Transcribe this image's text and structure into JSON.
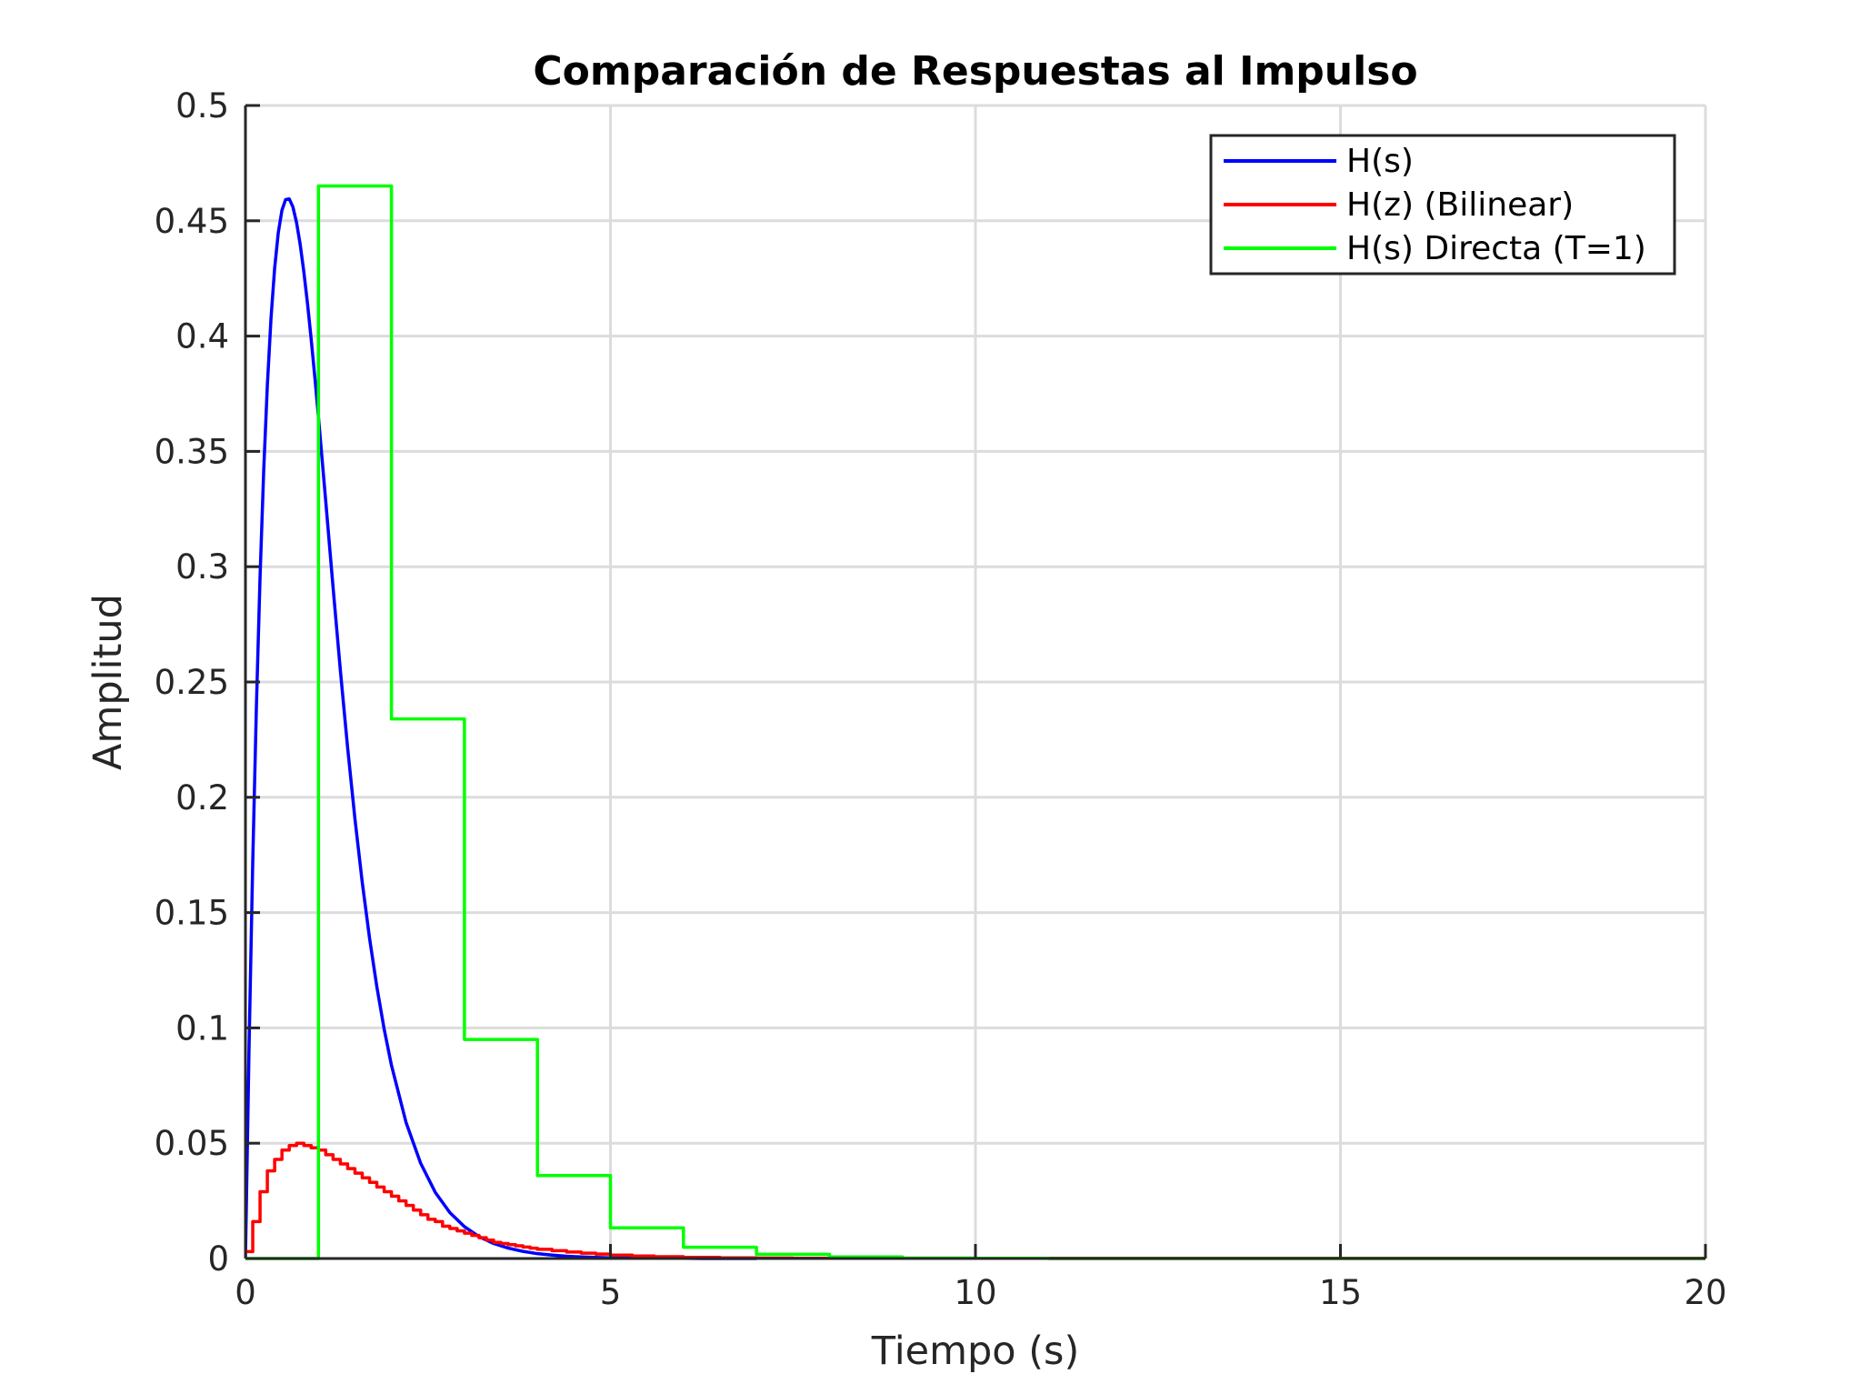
{
  "chart_data": {
    "type": "line",
    "title": "Comparación de Respuestas al Impulso",
    "xlabel": "Tiempo (s)",
    "ylabel": "Amplitud",
    "xlim": [
      0,
      20
    ],
    "ylim": [
      0,
      0.5
    ],
    "xticks": [
      0,
      5,
      10,
      15,
      20
    ],
    "xtick_labels": [
      "0",
      "5",
      "10",
      "15",
      "20"
    ],
    "yticks": [
      0,
      0.05,
      0.1,
      0.15,
      0.2,
      0.25,
      0.3,
      0.35,
      0.4,
      0.45,
      0.5
    ],
    "ytick_labels": [
      "0",
      "0.05",
      "0.1",
      "0.15",
      "0.2",
      "0.25",
      "0.3",
      "0.35",
      "0.4",
      "0.45",
      "0.5"
    ],
    "grid": true,
    "legend_position": "top-right",
    "series": [
      {
        "name": "H(s)",
        "style": "line",
        "color": "#0000ff",
        "x": [
          0,
          0.05,
          0.1,
          0.15,
          0.2,
          0.25,
          0.3,
          0.35,
          0.4,
          0.45,
          0.5,
          0.55,
          0.6,
          0.65,
          0.7,
          0.75,
          0.8,
          0.85,
          0.9,
          0.95,
          1.0,
          1.1,
          1.2,
          1.3,
          1.4,
          1.5,
          1.6,
          1.7,
          1.8,
          1.9,
          2.0,
          2.2,
          2.4,
          2.6,
          2.8,
          3.0,
          3.2,
          3.4,
          3.6,
          3.8,
          4.0,
          4.2,
          4.4,
          4.6,
          4.8,
          5.0,
          5.25,
          5.5,
          5.75,
          6.0,
          6.25,
          6.5,
          6.75,
          7.0
        ],
        "values": [
          0,
          0.0928,
          0.1722,
          0.2394,
          0.2955,
          0.3417,
          0.3787,
          0.4077,
          0.4295,
          0.4449,
          0.4546,
          0.4592,
          0.4595,
          0.456,
          0.4492,
          0.4397,
          0.4278,
          0.4141,
          0.3988,
          0.3823,
          0.3649,
          0.3283,
          0.2911,
          0.2551,
          0.2214,
          0.1906,
          0.1631,
          0.1389,
          0.1178,
          0.0995,
          0.0838,
          0.059,
          0.0413,
          0.0287,
          0.0199,
          0.0138,
          0.0095,
          0.0065,
          0.0045,
          0.0031,
          0.0021,
          0.0015,
          0.001,
          0.0007,
          0.0005,
          0.0003,
          0.0002,
          0.0001,
          0.0001,
          0.0001,
          0.0,
          0.0,
          0.0,
          0.0
        ]
      },
      {
        "name": "H(z) (Bilinear)",
        "style": "stairs",
        "color": "#ff0000",
        "x": [
          0,
          0.1,
          0.2,
          0.3,
          0.4,
          0.5,
          0.6,
          0.7,
          0.8,
          0.9,
          1.0,
          1.1,
          1.2,
          1.3,
          1.4,
          1.5,
          1.6,
          1.7,
          1.8,
          1.9,
          2.0,
          2.1,
          2.2,
          2.3,
          2.4,
          2.5,
          2.6,
          2.7,
          2.8,
          2.9,
          3.0,
          3.1,
          3.2,
          3.3,
          3.4,
          3.5,
          3.6,
          3.7,
          3.8,
          3.9,
          4.0,
          4.2,
          4.4,
          4.6,
          4.8,
          5.0,
          5.3,
          5.6,
          6.0,
          6.5,
          7.0,
          7.5,
          8.0
        ],
        "values": [
          0.003,
          0.016,
          0.029,
          0.038,
          0.043,
          0.047,
          0.049,
          0.05,
          0.049,
          0.048,
          0.047,
          0.045,
          0.043,
          0.041,
          0.039,
          0.037,
          0.035,
          0.033,
          0.031,
          0.029,
          0.027,
          0.025,
          0.023,
          0.021,
          0.019,
          0.017,
          0.016,
          0.014,
          0.013,
          0.012,
          0.011,
          0.01,
          0.009,
          0.008,
          0.007,
          0.0065,
          0.006,
          0.0055,
          0.005,
          0.0045,
          0.004,
          0.0034,
          0.0028,
          0.0023,
          0.0019,
          0.0015,
          0.0011,
          0.0008,
          0.0005,
          0.0003,
          0.0002,
          0.0001,
          0.0001
        ]
      },
      {
        "name": "H(s) Directa (T=1)",
        "style": "stairs",
        "color": "#00ff00",
        "x": [
          0,
          1,
          2,
          3,
          4,
          5,
          6,
          7,
          8,
          9,
          10,
          11,
          12,
          13,
          14,
          15,
          16,
          17,
          18,
          19,
          20
        ],
        "values": [
          0,
          0.4651,
          0.234,
          0.095,
          0.036,
          0.0133,
          0.0049,
          0.0018,
          0.0007,
          0.0002,
          0.0001,
          0.0,
          0.0,
          0.0,
          0.0,
          0.0,
          0.0,
          0.0,
          0.0,
          0.0,
          0.0
        ]
      }
    ]
  }
}
